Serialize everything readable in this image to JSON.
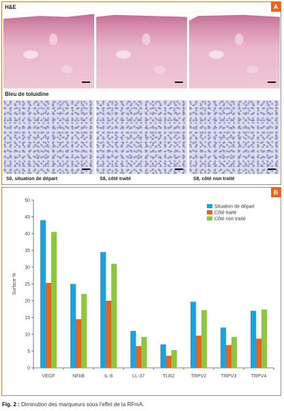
{
  "panel_a": {
    "badge": "A",
    "he_label": "H&E",
    "tb_label": "Bleu de toluidine",
    "captions": [
      "S0, situation de départ",
      "S8, côté traité",
      "S8, côté non traité"
    ]
  },
  "panel_b": {
    "badge": "B"
  },
  "colors": {
    "situation": "#1aa3de",
    "traite": "#e2641e",
    "non_traite": "#8dc63f",
    "accent": "#e8641c"
  },
  "chart_data": {
    "type": "bar",
    "ylabel": "Surface %",
    "ylim": [
      0,
      50
    ],
    "yticks": [
      0,
      5,
      10,
      15,
      20,
      25,
      30,
      35,
      40,
      45,
      50
    ],
    "categories": [
      "VEGF",
      "NFkB",
      "IL-8",
      "LL-37",
      "TLR2",
      "TRPV2",
      "TRPV3",
      "TRPV4"
    ],
    "series": [
      {
        "name": "Situation de départ",
        "color": "#1aa3de",
        "values": [
          44,
          25,
          34.5,
          11,
          7,
          19.7,
          12,
          17
        ]
      },
      {
        "name": "Côté traité",
        "color": "#e2641e",
        "values": [
          25.3,
          14.5,
          20,
          6.5,
          3.6,
          9.6,
          6.8,
          8.7
        ]
      },
      {
        "name": "Côté non traité",
        "color": "#8dc63f",
        "values": [
          40.5,
          22,
          31,
          9.2,
          5.3,
          17.2,
          9.2,
          17.4
        ]
      }
    ],
    "legend_position": "top-right",
    "grid": false
  },
  "caption": {
    "label": "Fig. 2 :",
    "text": " Diminution des marqueurs sous l'effet de la RFmA."
  }
}
